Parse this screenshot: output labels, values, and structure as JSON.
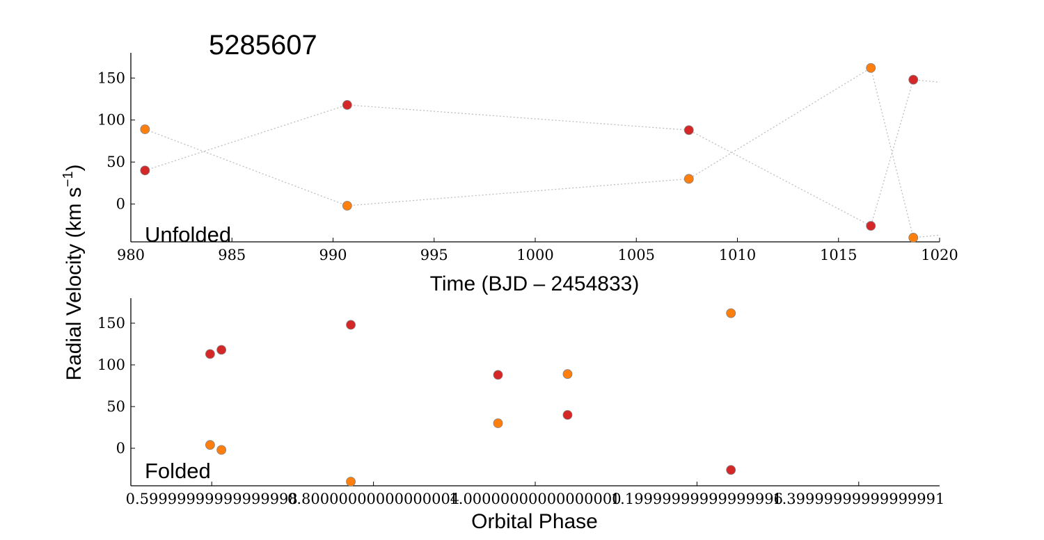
{
  "chart_data": [
    {
      "type": "scatter",
      "title": "5285607",
      "panel_label": "Unfolded",
      "xlabel": "Time (BJD – 2454833)",
      "ylabel_main": "Radial Velocity (km s",
      "ylabel_exp": "−1",
      "ylabel_close": ")",
      "xlim": [
        980,
        1020
      ],
      "ylim": [
        -45,
        180
      ],
      "xticks": [
        980,
        985,
        990,
        995,
        1000,
        1005,
        1010,
        1015,
        1020
      ],
      "yticks": [
        0,
        50,
        100,
        150
      ],
      "grid": false,
      "connect_points": true,
      "series": [
        {
          "color": "#d62728",
          "x": [
            980.7,
            990.7,
            1007.6,
            1016.6,
            1018.7
          ],
          "y": [
            40,
            118,
            88,
            -26,
            148
          ],
          "tail": [
            1020,
            145
          ]
        },
        {
          "color": "#ff7f0e",
          "x": [
            980.7,
            990.7,
            1007.6,
            1016.6,
            1018.7
          ],
          "y": [
            89,
            -2,
            30,
            162,
            -40
          ],
          "tail": [
            1020,
            -37
          ]
        }
      ]
    },
    {
      "type": "scatter",
      "panel_label": "Folded",
      "xlabel": "Orbital Phase",
      "xlim": [
        0.5,
        1.5
      ],
      "ylim": [
        -45,
        180
      ],
      "xticks": [
        0.6,
        0.8,
        1.0,
        1.2,
        1.4
      ],
      "yticks": [
        0,
        50,
        100,
        150
      ],
      "grid": false,
      "series": [
        {
          "color": "#d62728",
          "x": [
            0.598,
            0.612,
            0.772,
            0.954,
            1.04,
            1.242
          ],
          "y": [
            113,
            118,
            148,
            88,
            40,
            -26
          ]
        },
        {
          "color": "#ff7f0e",
          "x": [
            0.598,
            0.612,
            0.772,
            0.954,
            1.04,
            1.242
          ],
          "y": [
            4,
            -2,
            -40,
            30,
            89,
            162
          ]
        }
      ]
    }
  ]
}
